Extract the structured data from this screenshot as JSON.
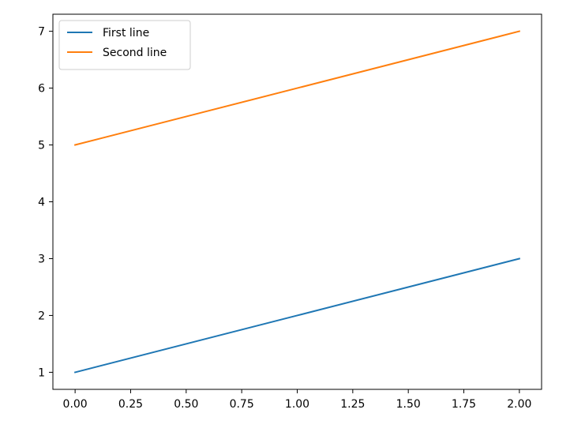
{
  "chart_data": {
    "type": "line",
    "title": "",
    "xlabel": "",
    "ylabel": "",
    "x": [
      0,
      1,
      2
    ],
    "xlim": [
      -0.1,
      2.1
    ],
    "ylim": [
      0.7,
      7.3
    ],
    "xticks": [
      0.0,
      0.25,
      0.5,
      0.75,
      1.0,
      1.25,
      1.5,
      1.75,
      2.0
    ],
    "xtick_labels": [
      "0.00",
      "0.25",
      "0.50",
      "0.75",
      "1.00",
      "1.25",
      "1.50",
      "1.75",
      "2.00"
    ],
    "yticks": [
      1,
      2,
      3,
      4,
      5,
      6,
      7
    ],
    "ytick_labels": [
      "1",
      "2",
      "3",
      "4",
      "5",
      "6",
      "7"
    ],
    "grid": false,
    "legend_position": "top-left",
    "series": [
      {
        "name": "First line",
        "values": [
          1,
          2,
          3
        ],
        "color": "#1f77b4"
      },
      {
        "name": "Second line",
        "values": [
          5,
          6,
          7
        ],
        "color": "#ff7f0e"
      }
    ]
  }
}
